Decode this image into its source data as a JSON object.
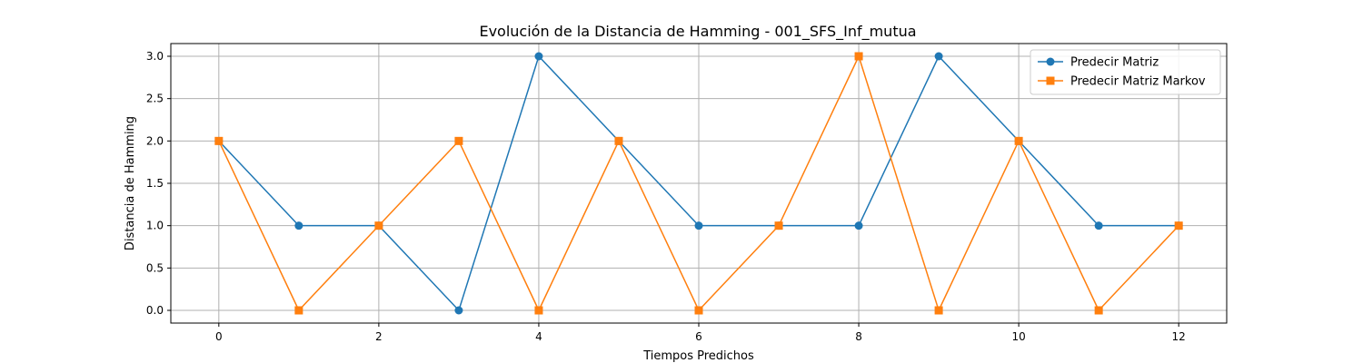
{
  "chart_data": {
    "type": "line",
    "title": "Evolución de la Distancia de Hamming - 001_SFS_Inf_mutua",
    "xlabel": "Tiempos Predichos",
    "ylabel": "Distancia de Hamming",
    "x": [
      0,
      1,
      2,
      3,
      4,
      5,
      6,
      7,
      8,
      9,
      10,
      11,
      12
    ],
    "xlim": [
      -0.6,
      12.6
    ],
    "ylim": [
      -0.15,
      3.15
    ],
    "xticks": [
      0,
      2,
      4,
      6,
      8,
      10,
      12
    ],
    "yticks": [
      0.0,
      0.5,
      1.0,
      1.5,
      2.0,
      2.5,
      3.0
    ],
    "xtick_labels": [
      "0",
      "2",
      "4",
      "6",
      "8",
      "10",
      "12"
    ],
    "ytick_labels": [
      "0.0",
      "0.5",
      "1.0",
      "1.5",
      "2.0",
      "2.5",
      "3.0"
    ],
    "grid": true,
    "legend_position": "top-right",
    "series": [
      {
        "name": "Predecir Matriz",
        "color": "#1f77b4",
        "marker": "circle",
        "values": [
          2,
          1,
          1,
          0,
          3,
          2,
          1,
          1,
          1,
          3,
          2,
          1,
          1
        ]
      },
      {
        "name": "Predecir Matriz Markov",
        "color": "#ff7f0e",
        "marker": "square",
        "values": [
          2,
          0,
          1,
          2,
          0,
          2,
          0,
          1,
          3,
          0,
          2,
          0,
          1
        ]
      }
    ]
  }
}
